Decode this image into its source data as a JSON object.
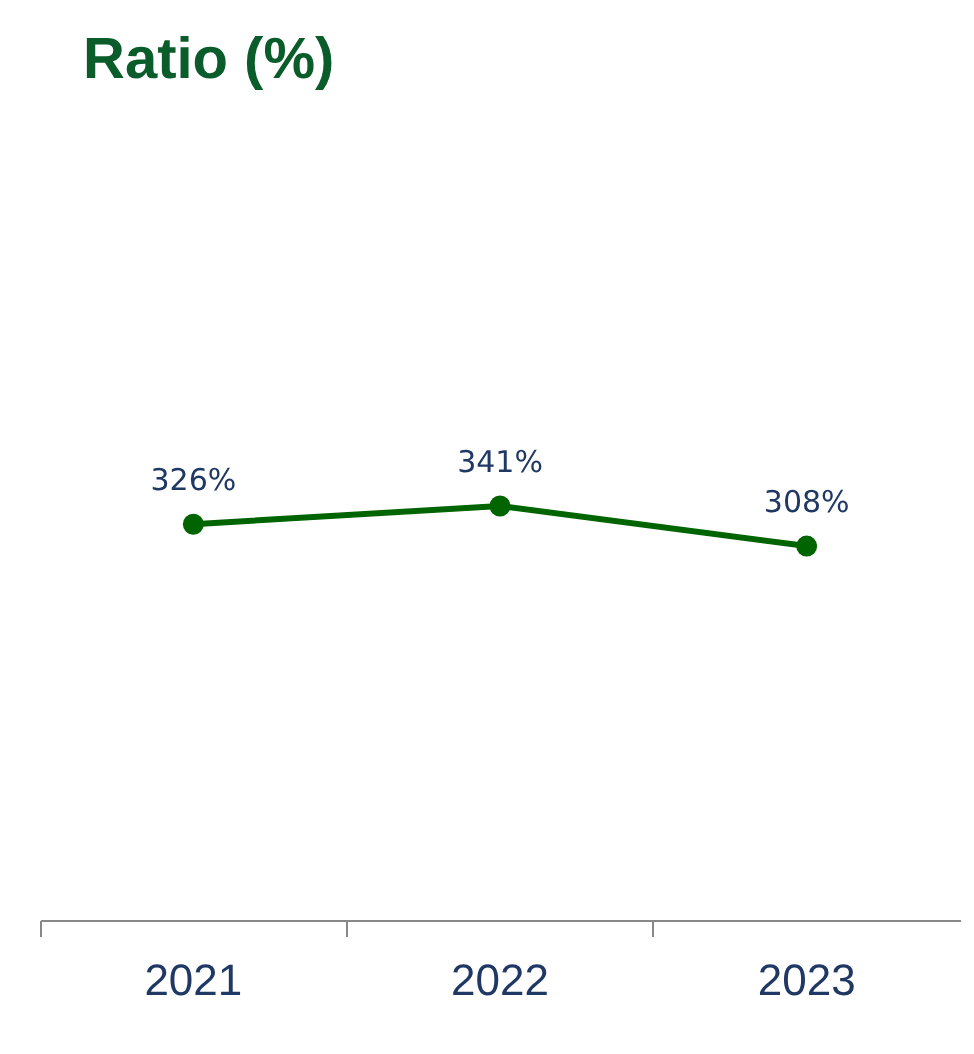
{
  "chart_data": {
    "type": "line",
    "title": "Ratio (%)",
    "categories": [
      "2021",
      "2022",
      "2023"
    ],
    "series": [
      {
        "color": "#006400",
        "values": [
          326,
          341,
          308
        ],
        "value_labels": [
          "326%",
          "341%",
          "308%"
        ]
      }
    ],
    "tick_labels": "x",
    "grid": false,
    "marker": "circle",
    "line_style": "solid"
  }
}
